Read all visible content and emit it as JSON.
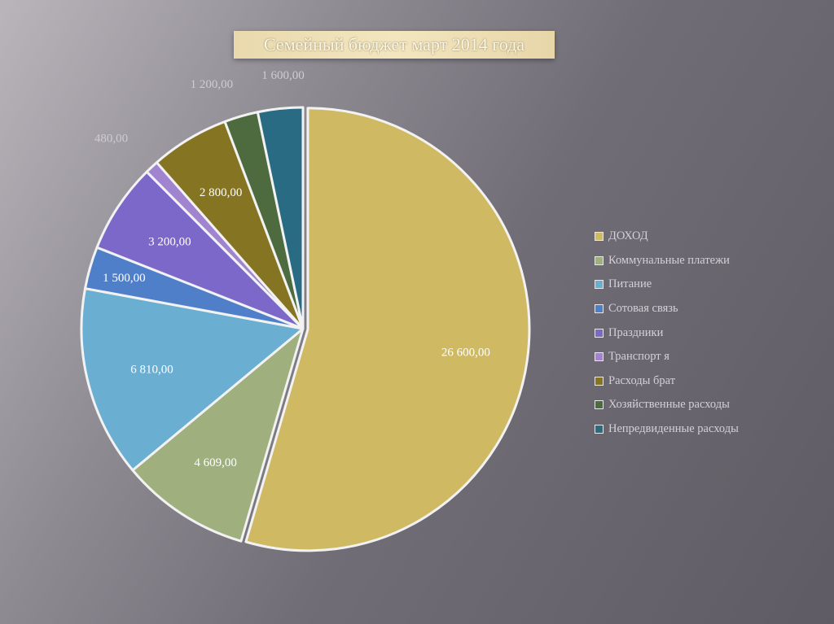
{
  "title": "Семейный бюджет март 2014 года",
  "chart_data": {
    "type": "pie",
    "title": "Семейный бюджет март 2014 года",
    "legend_position": "right",
    "series": [
      {
        "name": "ДОХОД",
        "value": 26600,
        "label": "26 600,00",
        "color": "#cfba63"
      },
      {
        "name": "Коммунальные платежи",
        "value": 4609,
        "label": "4 609,00",
        "color": "#9fb07e"
      },
      {
        "name": "Питание",
        "value": 6810,
        "label": "6 810,00",
        "color": "#6aaed2"
      },
      {
        "name": "Сотовая связь",
        "value": 1500,
        "label": "1 500,00",
        "color": "#4f7fc9"
      },
      {
        "name": "Праздники",
        "value": 3200,
        "label": "3 200,00",
        "color": "#7b68c9"
      },
      {
        "name": "Транспорт я",
        "value": 480,
        "label": "480,00",
        "color": "#a184cf"
      },
      {
        "name": "Расходы брат",
        "value": 2800,
        "label": "2 800,00",
        "color": "#857421"
      },
      {
        "name": "Хозяйственные расходы",
        "value": 1200,
        "label": "1 200,00",
        "color": "#4d6b3e"
      },
      {
        "name": "Непредвиденные расходы",
        "value": 1600,
        "label": "1 600,00",
        "color": "#2a6b84"
      }
    ]
  }
}
